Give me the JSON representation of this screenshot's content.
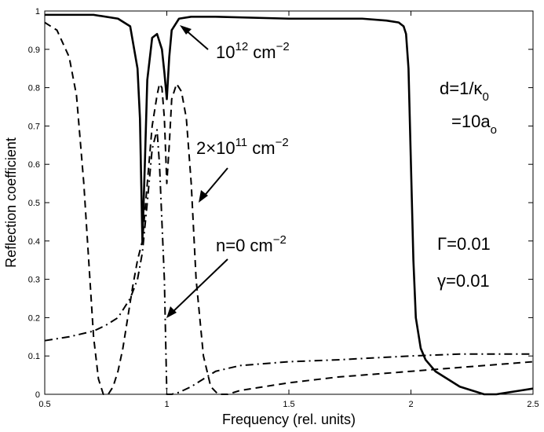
{
  "chart_data": {
    "type": "line",
    "xlabel": "Frequency (rel. units)",
    "ylabel": "Reflection coefficient",
    "xlim": [
      0.5,
      2.5
    ],
    "ylim": [
      0,
      1
    ],
    "grid": false,
    "x_ticks": [
      "0.5",
      "1",
      "1.5",
      "2",
      "2.5"
    ],
    "y_ticks": [
      "0",
      "0.1",
      "0.2",
      "0.3",
      "0.4",
      "0.5",
      "0.6",
      "0.7",
      "0.8",
      "0.9",
      "1"
    ],
    "series": [
      {
        "label": "10^12 cm^-2",
        "style": "solid",
        "x": [
          0.5,
          0.6,
          0.7,
          0.8,
          0.85,
          0.88,
          0.89,
          0.9,
          0.91,
          0.92,
          0.94,
          0.96,
          0.98,
          0.99,
          1.0,
          1.01,
          1.02,
          1.05,
          1.1,
          1.2,
          1.5,
          1.8,
          1.9,
          1.95,
          1.97,
          1.98,
          1.99,
          2.0,
          2.01,
          2.02,
          2.04,
          2.06,
          2.1,
          2.15,
          2.2,
          2.25,
          2.3,
          2.35,
          2.4,
          2.45,
          2.5
        ],
        "y": [
          0.99,
          0.99,
          0.99,
          0.98,
          0.96,
          0.85,
          0.72,
          0.4,
          0.6,
          0.82,
          0.93,
          0.94,
          0.9,
          0.84,
          0.77,
          0.88,
          0.95,
          0.98,
          0.985,
          0.985,
          0.98,
          0.98,
          0.975,
          0.97,
          0.96,
          0.94,
          0.85,
          0.6,
          0.35,
          0.2,
          0.12,
          0.09,
          0.06,
          0.04,
          0.02,
          0.01,
          0.0,
          0.0,
          0.005,
          0.01,
          0.015
        ]
      },
      {
        "label": "2×10^11 cm^-2",
        "style": "dashed",
        "x": [
          0.5,
          0.55,
          0.6,
          0.63,
          0.66,
          0.68,
          0.7,
          0.72,
          0.74,
          0.76,
          0.78,
          0.8,
          0.82,
          0.84,
          0.86,
          0.88,
          0.9,
          0.92,
          0.94,
          0.96,
          0.97,
          0.98,
          0.99,
          1.0,
          1.01,
          1.02,
          1.04,
          1.06,
          1.08,
          1.1,
          1.12,
          1.15,
          1.18,
          1.21,
          1.25,
          1.3,
          1.4,
          1.5,
          1.7,
          2.0,
          2.3,
          2.5
        ],
        "y": [
          0.97,
          0.95,
          0.88,
          0.78,
          0.55,
          0.35,
          0.15,
          0.04,
          0.0,
          0.0,
          0.02,
          0.06,
          0.12,
          0.2,
          0.28,
          0.35,
          0.4,
          0.55,
          0.7,
          0.78,
          0.81,
          0.8,
          0.72,
          0.55,
          0.65,
          0.77,
          0.81,
          0.79,
          0.72,
          0.55,
          0.3,
          0.1,
          0.02,
          0.0,
          0.0,
          0.01,
          0.02,
          0.03,
          0.045,
          0.06,
          0.075,
          0.085
        ]
      },
      {
        "label": "n=0 cm^-2",
        "style": "dashdot",
        "x": [
          0.5,
          0.6,
          0.7,
          0.75,
          0.8,
          0.85,
          0.88,
          0.9,
          0.92,
          0.94,
          0.96,
          0.97,
          0.98,
          0.99,
          1.0,
          1.005,
          1.02,
          1.05,
          1.1,
          1.15,
          1.2,
          1.3,
          1.5,
          1.7,
          2.0,
          2.2,
          2.5
        ],
        "y": [
          0.14,
          0.15,
          0.165,
          0.18,
          0.2,
          0.25,
          0.3,
          0.37,
          0.5,
          0.64,
          0.69,
          0.6,
          0.45,
          0.3,
          0.0,
          0.0,
          0.0,
          0.005,
          0.02,
          0.04,
          0.06,
          0.075,
          0.085,
          0.09,
          0.1,
          0.105,
          0.105
        ]
      }
    ],
    "annotations": {
      "label_1e12": {
        "base": "10",
        "exp": "12",
        "unit": "cm",
        "unit_exp": "−2"
      },
      "label_2e11": {
        "pre": "2×10",
        "exp": "11",
        "unit": "cm",
        "unit_exp": "−2"
      },
      "label_n0": {
        "base": "n=0 cm",
        "unit_exp": "−2"
      },
      "d_line1": {
        "text": "d=1/κ",
        "sub": "0"
      },
      "d_line2": {
        "text": "=10a",
        "sub": "o"
      },
      "gamma_big": "Γ=0.01",
      "gamma_small": "γ=0.01"
    }
  }
}
